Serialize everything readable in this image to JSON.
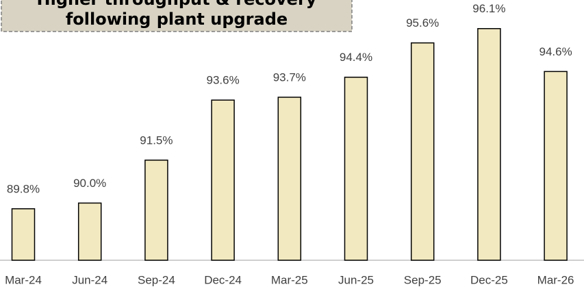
{
  "chart_data": {
    "type": "bar",
    "annotation": [
      "Higher throughput & recovery",
      "following plant upgrade"
    ],
    "categories": [
      "Mar-24",
      "Jun-24",
      "Sep-24",
      "Dec-24",
      "Mar-25",
      "Jun-25",
      "Sep-25",
      "Dec-25",
      "Mar-26"
    ],
    "values": [
      89.8,
      90.0,
      91.5,
      93.6,
      93.7,
      94.4,
      95.6,
      96.1,
      94.6
    ],
    "value_labels": [
      "89.8%",
      "90.0%",
      "91.5%",
      "93.6%",
      "93.7%",
      "94.4%",
      "95.6%",
      "96.1%",
      "94.6%"
    ],
    "color": "#f2e9c1",
    "ylim": [
      88,
      97.1
    ]
  }
}
